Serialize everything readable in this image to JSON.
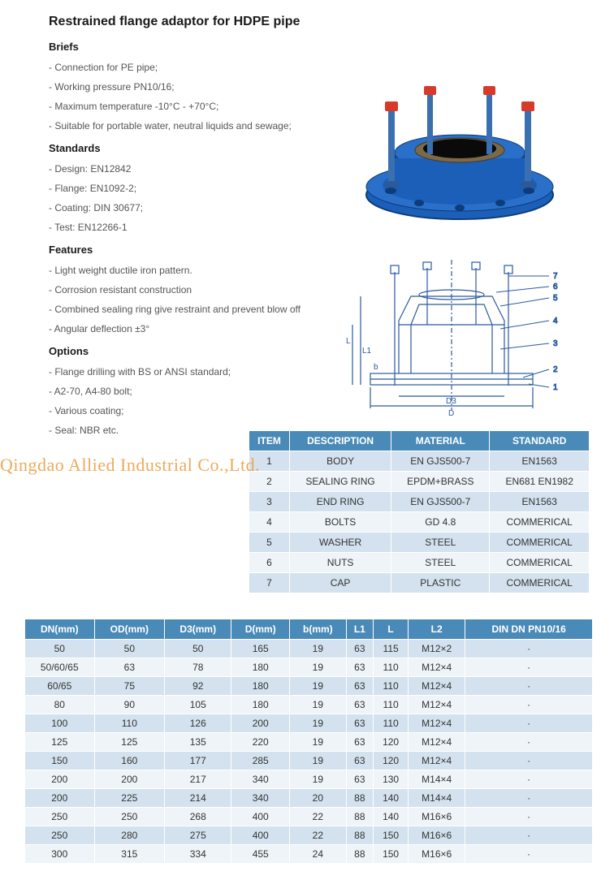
{
  "title": "Restrained flange adaptor for HDPE pipe",
  "watermark": "Qingdao Allied Industrial Co.,Ltd.",
  "sections": {
    "briefs": {
      "heading": "Briefs",
      "items": [
        "Connection for PE pipe;",
        "Working pressure PN10/16;",
        "Maximum temperature -10°C - +70°C;",
        "Suitable for portable water, neutral liquids and sewage;"
      ]
    },
    "standards": {
      "heading": "Standards",
      "items": [
        "Design: EN12842",
        "Flange: EN1092-2;",
        "Coating: DIN 30677;",
        "Test: EN12266-1"
      ]
    },
    "features": {
      "heading": "Features",
      "items": [
        "Light weight ductile iron pattern.",
        "Corrosion resistant construction",
        "Combined sealing ring give restraint and prevent blow off",
        "Angular deflection ±3°"
      ]
    },
    "options": {
      "heading": "Options",
      "items": [
        "Flange drilling with BS or ANSI standard;",
        "A2-70, A4-80 bolt;",
        "Various coating;",
        "Seal: NBR etc."
      ]
    }
  },
  "materials_table": {
    "headers": [
      "ITEM",
      "DESCRIPTION",
      "MATERIAL",
      "STANDARD"
    ],
    "rows": [
      [
        "1",
        "BODY",
        "EN GJS500-7",
        "EN1563"
      ],
      [
        "2",
        "SEALING RING",
        "EPDM+BRASS",
        "EN681 EN1982"
      ],
      [
        "3",
        "END RING",
        "EN GJS500-7",
        "EN1563"
      ],
      [
        "4",
        "BOLTS",
        "GD 4.8",
        "COMMERICAL"
      ],
      [
        "5",
        "WASHER",
        "STEEL",
        "COMMERICAL"
      ],
      [
        "6",
        "NUTS",
        "STEEL",
        "COMMERICAL"
      ],
      [
        "7",
        "CAP",
        "PLASTIC",
        "COMMERICAL"
      ]
    ]
  },
  "dimensions_table": {
    "headers": [
      "DN(mm)",
      "OD(mm)",
      "D3(mm)",
      "D(mm)",
      "b(mm)",
      "L1",
      "L",
      "L2",
      "DIN DN PN10/16"
    ],
    "rows": [
      [
        "50",
        "50",
        "50",
        "165",
        "19",
        "63",
        "115",
        "M12×2",
        "·"
      ],
      [
        "50/60/65",
        "63",
        "78",
        "180",
        "19",
        "63",
        "110",
        "M12×4",
        "·"
      ],
      [
        "60/65",
        "75",
        "92",
        "180",
        "19",
        "63",
        "110",
        "M12×4",
        "·"
      ],
      [
        "80",
        "90",
        "105",
        "180",
        "19",
        "63",
        "110",
        "M12×4",
        "·"
      ],
      [
        "100",
        "110",
        "126",
        "200",
        "19",
        "63",
        "110",
        "M12×4",
        "·"
      ],
      [
        "125",
        "125",
        "135",
        "220",
        "19",
        "63",
        "120",
        "M12×4",
        "·"
      ],
      [
        "150",
        "160",
        "177",
        "285",
        "19",
        "63",
        "120",
        "M12×4",
        "·"
      ],
      [
        "200",
        "200",
        "217",
        "340",
        "19",
        "63",
        "130",
        "M14×4",
        "·"
      ],
      [
        "200",
        "225",
        "214",
        "340",
        "20",
        "88",
        "140",
        "M14×4",
        "·"
      ],
      [
        "250",
        "250",
        "268",
        "400",
        "22",
        "88",
        "140",
        "M16×6",
        "·"
      ],
      [
        "250",
        "280",
        "275",
        "400",
        "22",
        "88",
        "150",
        "M16×6",
        "·"
      ],
      [
        "300",
        "315",
        "334",
        "455",
        "24",
        "88",
        "150",
        "M16×6",
        "·"
      ]
    ]
  },
  "product_colors": {
    "body": "#1b5fb8",
    "cap": "#d83a2a",
    "bolt": "#3a6fb0"
  },
  "diagram_labels": [
    "1",
    "2",
    "3",
    "4",
    "5",
    "6",
    "7",
    "D",
    "D3",
    "L",
    "L1",
    "b"
  ]
}
